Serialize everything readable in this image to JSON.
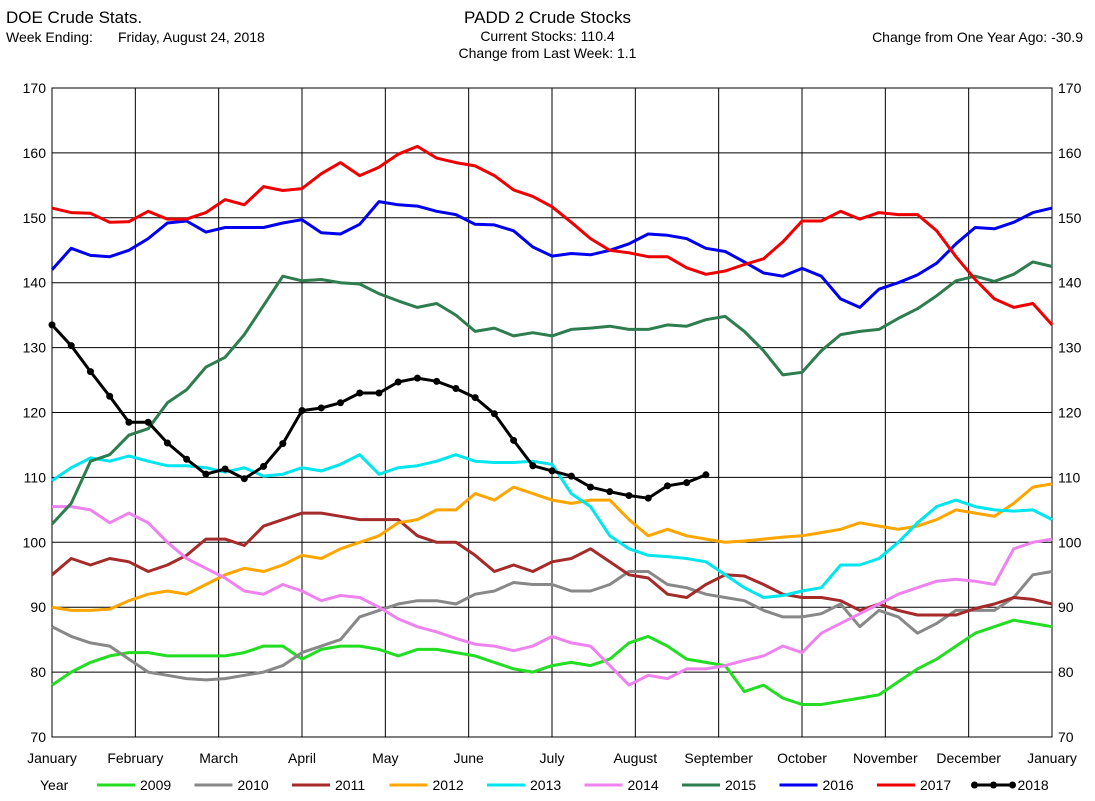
{
  "header": {
    "source": "DOE Crude Stats.",
    "week_label": "Week Ending:",
    "week_value": "Friday, August 24, 2018",
    "title": "PADD 2 Crude Stocks",
    "current_stocks": "Current Stocks: 110.4",
    "change_last_week": "Change from Last Week:   1.1",
    "change_year_ago": "Change from One Year Ago: -30.9"
  },
  "chart_data": {
    "type": "line",
    "ylim": [
      70,
      170
    ],
    "yticks": [
      70,
      80,
      90,
      100,
      110,
      120,
      130,
      140,
      150,
      160,
      170
    ],
    "xlim": [
      0,
      12
    ],
    "xtick_labels": [
      "January",
      "February",
      "March",
      "April",
      "May",
      "June",
      "July",
      "August",
      "September",
      "October",
      "November",
      "December",
      "January"
    ],
    "grid": true,
    "legend_title": "Year",
    "legend_position": "bottom",
    "series": [
      {
        "name": "2009",
        "color": "#22dd22",
        "markers": false,
        "x_step": 0.2308,
        "values": [
          78,
          80,
          81.5,
          82.5,
          83,
          83,
          82.5,
          82.5,
          82.5,
          82.5,
          83,
          84,
          84,
          82,
          83.5,
          84,
          84,
          83.5,
          82.5,
          83.5,
          83.5,
          83,
          82.5,
          81.5,
          80.5,
          80,
          81,
          81.5,
          81,
          82,
          84.5,
          85.5,
          84,
          82,
          81.5,
          81,
          77,
          78,
          76,
          75,
          75,
          75.5,
          76,
          76.5,
          78.5,
          80.5,
          82,
          84,
          86,
          87,
          88,
          87.5,
          87
        ]
      },
      {
        "name": "2010",
        "color": "#888888",
        "markers": false,
        "x_step": 0.2308,
        "values": [
          87,
          85.5,
          84.5,
          84,
          82,
          80,
          79.5,
          79,
          78.8,
          79,
          79.5,
          80,
          81,
          83,
          84,
          85,
          88.5,
          89.5,
          90.5,
          91,
          91,
          90.5,
          92,
          92.5,
          93.8,
          93.5,
          93.5,
          92.5,
          92.5,
          93.5,
          95.5,
          95.5,
          93.5,
          93,
          92,
          91.5,
          91,
          89.5,
          88.5,
          88.5,
          89,
          90.5,
          87,
          89.5,
          88.5,
          86,
          87.5,
          89.5,
          89.5,
          89.5,
          91.5,
          95,
          95.5
        ]
      },
      {
        "name": "2011",
        "color": "#a52a2a",
        "markers": false,
        "x_step": 0.2308,
        "values": [
          95,
          97.5,
          96.5,
          97.5,
          97,
          95.5,
          96.5,
          98,
          100.5,
          100.5,
          99.5,
          102.5,
          103.5,
          104.5,
          104.5,
          104,
          103.5,
          103.5,
          103.5,
          101,
          100,
          100,
          98,
          95.5,
          96.5,
          95.5,
          97,
          97.5,
          99,
          97,
          95,
          94.5,
          92,
          91.5,
          93.5,
          95,
          94.8,
          93.5,
          92,
          91.5,
          91.5,
          91,
          89.5,
          90.5,
          89.5,
          88.8,
          88.8,
          88.8,
          89.8,
          90.5,
          91.5,
          91.2,
          90.5
        ]
      },
      {
        "name": "2012",
        "color": "#ffa500",
        "markers": false,
        "x_step": 0.2308,
        "values": [
          90,
          89.5,
          89.5,
          89.7,
          91,
          92,
          92.5,
          92,
          93.5,
          95,
          96,
          95.5,
          96.5,
          98,
          97.5,
          99,
          100,
          101,
          103,
          103.5,
          105,
          105,
          107.5,
          106.5,
          108.5,
          107.5,
          106.5,
          106,
          106.5,
          106.5,
          103.5,
          101,
          102,
          101,
          100.5,
          100,
          100.2,
          100.5,
          100.8,
          101,
          101.5,
          102,
          103,
          102.5,
          102,
          102.5,
          103.5,
          105,
          104.5,
          104,
          106,
          108.5,
          109
        ]
      },
      {
        "name": "2013",
        "color": "#00e5ee",
        "markers": false,
        "x_step": 0.2308,
        "values": [
          109.5,
          111.5,
          113,
          112.5,
          113.3,
          112.5,
          111.8,
          111.8,
          111.5,
          110.8,
          111.5,
          110.2,
          110.5,
          111.5,
          111,
          112,
          113.5,
          110.5,
          111.5,
          111.8,
          112.5,
          113.5,
          112.5,
          112.3,
          112.3,
          112.5,
          112,
          107.5,
          105.5,
          101,
          99,
          98,
          97.8,
          97.5,
          97,
          95,
          93,
          91.5,
          91.8,
          92.5,
          93,
          96.5,
          96.5,
          97.5,
          100,
          103,
          105.5,
          106.5,
          105.5,
          105,
          104.8,
          105,
          103.5
        ]
      },
      {
        "name": "2014",
        "color": "#ee82ee",
        "markers": false,
        "x_step": 0.2308,
        "values": [
          105.5,
          105.5,
          105,
          103,
          104.5,
          103,
          100,
          97.5,
          96,
          94.5,
          92.5,
          92,
          93.5,
          92.5,
          91,
          91.8,
          91.5,
          90,
          88.2,
          87,
          86.2,
          85.2,
          84.3,
          84,
          83.3,
          84,
          85.5,
          84.5,
          84,
          81,
          78,
          79.5,
          79,
          80.5,
          80.5,
          81,
          81.8,
          82.5,
          84,
          83,
          86,
          87.5,
          89,
          90.5,
          92,
          93,
          94,
          94.3,
          94,
          93.5,
          99,
          100,
          100.5
        ]
      },
      {
        "name": "2015",
        "color": "#2e7d4f",
        "markers": false,
        "x_step": 0.2308,
        "values": [
          102.8,
          106,
          112.5,
          113.5,
          116.5,
          117.5,
          121.5,
          123.5,
          127,
          128.5,
          132,
          136.5,
          141,
          140.3,
          140.5,
          140,
          139.8,
          138.3,
          137.2,
          136.2,
          136.8,
          135,
          132.5,
          133,
          131.8,
          132.3,
          131.8,
          132.8,
          133,
          133.3,
          132.8,
          132.8,
          133.5,
          133.3,
          134.3,
          134.8,
          132.5,
          129.5,
          125.8,
          126.2,
          129.5,
          132,
          132.5,
          132.8,
          134.5,
          136,
          138,
          140.3,
          141,
          140.2,
          141.3,
          143.2,
          142.5
        ]
      },
      {
        "name": "2016",
        "color": "#0000ee",
        "markers": false,
        "x_step": 0.2308,
        "values": [
          142,
          145.3,
          144.2,
          144,
          145,
          146.8,
          149.2,
          149.5,
          147.8,
          148.5,
          148.5,
          148.5,
          149.2,
          149.7,
          147.7,
          147.5,
          149,
          152.5,
          152,
          151.8,
          151,
          150.5,
          149,
          148.9,
          148,
          145.5,
          144.1,
          144.5,
          144.3,
          145,
          146,
          147.5,
          147.3,
          146.8,
          145.3,
          144.8,
          143.2,
          141.5,
          141,
          142.2,
          141,
          137.5,
          136.2,
          139,
          140,
          141.2,
          143,
          146,
          148.5,
          148.3,
          149.3,
          150.8,
          151.5
        ]
      },
      {
        "name": "2017",
        "color": "#ee0000",
        "markers": false,
        "x_step": 0.2308,
        "values": [
          151.5,
          150.8,
          150.7,
          149.3,
          149.4,
          151,
          149.8,
          149.8,
          150.8,
          152.8,
          152,
          154.8,
          154.2,
          154.5,
          156.8,
          158.5,
          156.5,
          157.8,
          159.8,
          161,
          159.2,
          158.5,
          158,
          156.5,
          154.3,
          153.3,
          151.7,
          149.3,
          146.8,
          145,
          144.6,
          144,
          144,
          142.3,
          141.3,
          141.8,
          142.8,
          143.7,
          146.3,
          149.5,
          149.5,
          151,
          149.8,
          150.8,
          150.5,
          150.5,
          148,
          144,
          140.5,
          137.5,
          136.2,
          136.8,
          133.5
        ]
      },
      {
        "name": "2018",
        "color": "#000000",
        "markers": true,
        "x_step": 0.2308,
        "values": [
          133.5,
          130.3,
          126.3,
          122.5,
          118.5,
          118.5,
          115.3,
          112.8,
          110.5,
          111.3,
          109.8,
          111.7,
          115.2,
          120.3,
          120.7,
          121.5,
          123,
          123,
          124.7,
          125.3,
          124.8,
          123.7,
          122.3,
          119.8,
          115.7,
          111.8,
          111,
          110.2,
          108.5,
          107.8,
          107.2,
          106.8,
          108.7,
          109.2,
          110.4
        ]
      }
    ]
  }
}
